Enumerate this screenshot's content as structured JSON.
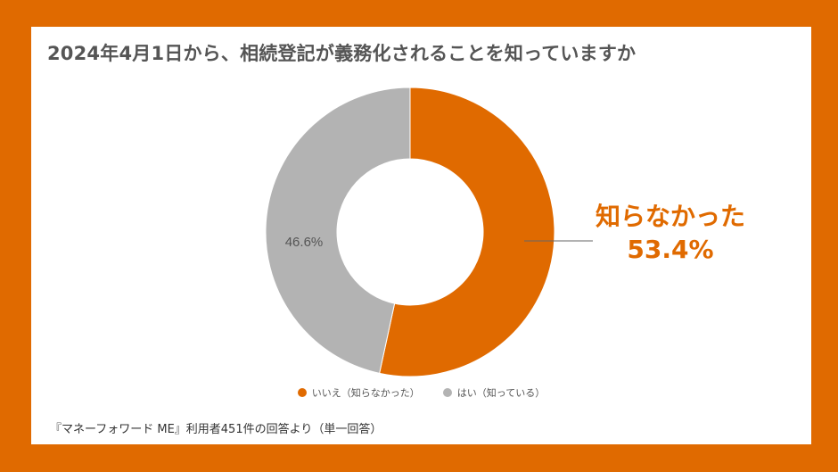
{
  "header": {
    "title": "2024年4月1日から、相続登記が義務化されることを知っていますか"
  },
  "chart_data": {
    "type": "pie",
    "variant": "donut",
    "title": "2024年4月1日から、相続登記が義務化されることを知っていますか",
    "slices": [
      {
        "label": "いいえ（知らなかった）",
        "value": 53.4,
        "value_label": "53.4%",
        "color": "#E06A00"
      },
      {
        "label": "はい（知っている）",
        "value": 46.6,
        "value_label": "46.6%",
        "color": "#B3B3B3"
      }
    ],
    "legend_position": "bottom"
  },
  "callout": {
    "title": "知らなかった",
    "value": "53.4%"
  },
  "footer": {
    "source": "『マネーフォワード ME』利用者451件の回答より（単一回答）"
  },
  "colors": {
    "accent": "#E06A00",
    "gray": "#B3B3B3",
    "title_text": "#555555"
  }
}
